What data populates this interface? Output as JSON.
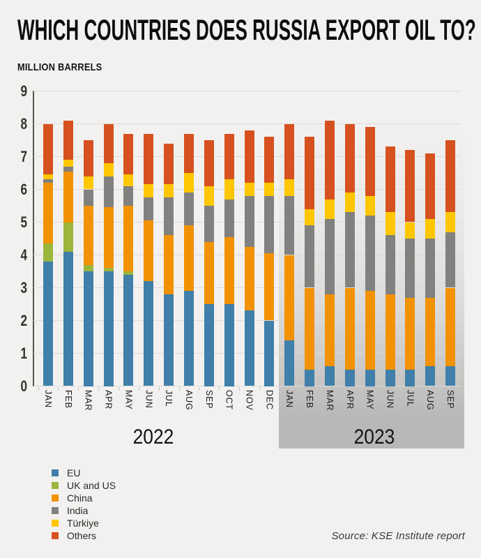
{
  "title": "WHICH COUNTRIES DOES RUSSIA EXPORT OIL TO?",
  "units_label": "MILLION BARRELS",
  "source": "Source: KSE Institute report",
  "colors": {
    "background": "#f2f1ef",
    "highlight_band": "#b9b8b6",
    "gridline": "#dcdbd9",
    "axis": "#56544f",
    "eu_blue": "#3f7fa9",
    "uk_us_green": "#9cb53c",
    "china_orange": "#f29203",
    "india_gray": "#818180",
    "turkiye_yellow": "#fec701",
    "others_red": "#d6511f"
  },
  "chart_data": {
    "type": "bar",
    "stacked": true,
    "title": "WHICH COUNTRIES DOES RUSSIA EXPORT OIL TO?",
    "ylabel": "MILLION BARRELS",
    "xlabel": "",
    "ylim": [
      0,
      9
    ],
    "yticks": [
      0,
      1,
      2,
      3,
      4,
      5,
      6,
      7,
      8,
      9
    ],
    "grid": true,
    "legend_position": "bottom-left",
    "categories": [
      "JAN",
      "FEB",
      "MAR",
      "APR",
      "MAY",
      "JUN",
      "JUL",
      "AUG",
      "SEP",
      "OCT",
      "NOV",
      "DEC",
      "JAN",
      "FEB",
      "MAR",
      "APR",
      "MAY",
      "JUN",
      "JUL",
      "AUG",
      "SEP"
    ],
    "category_groups": [
      {
        "label": "2022",
        "count": 12
      },
      {
        "label": "2023",
        "count": 9
      }
    ],
    "series": [
      {
        "name": "EU",
        "color": "#3f7fa9",
        "values": [
          3.8,
          4.1,
          3.5,
          3.5,
          3.4,
          3.2,
          2.8,
          2.9,
          2.5,
          2.5,
          2.3,
          2.0,
          1.4,
          0.5,
          0.6,
          0.5,
          0.5,
          0.5,
          0.5,
          0.6,
          0.6
        ]
      },
      {
        "name": "UK and US",
        "color": "#9cb53c",
        "values": [
          0.55,
          0.9,
          0.2,
          0.1,
          0.1,
          0,
          0,
          0,
          0,
          0,
          0,
          0,
          0,
          0,
          0,
          0,
          0,
          0,
          0,
          0,
          0
        ]
      },
      {
        "name": "China",
        "color": "#f29203",
        "values": [
          1.85,
          1.55,
          1.8,
          1.85,
          2.0,
          1.85,
          1.8,
          2.0,
          1.9,
          2.05,
          1.95,
          2.05,
          2.6,
          2.5,
          2.2,
          2.5,
          2.4,
          2.3,
          2.2,
          2.1,
          2.4
        ]
      },
      {
        "name": "India",
        "color": "#818180",
        "values": [
          0.1,
          0.15,
          0.5,
          0.95,
          0.6,
          0.7,
          1.15,
          1.0,
          1.1,
          1.15,
          1.55,
          1.75,
          1.8,
          1.9,
          2.3,
          2.3,
          2.3,
          1.8,
          1.8,
          1.8,
          1.7
        ]
      },
      {
        "name": "Türkiye",
        "color": "#fec701",
        "values": [
          0.15,
          0.2,
          0.4,
          0.4,
          0.35,
          0.4,
          0.4,
          0.6,
          0.6,
          0.6,
          0.4,
          0.4,
          0.5,
          0.5,
          0.6,
          0.6,
          0.6,
          0.7,
          0.5,
          0.6,
          0.6
        ]
      },
      {
        "name": "Others",
        "color": "#d6511f",
        "values": [
          1.55,
          1.2,
          1.1,
          1.2,
          1.25,
          1.55,
          1.25,
          1.2,
          1.4,
          1.4,
          1.6,
          1.4,
          1.7,
          2.2,
          2.4,
          2.1,
          2.1,
          2.0,
          2.2,
          2.0,
          2.2
        ]
      }
    ],
    "totals": [
      8.0,
      8.1,
      7.5,
      8.0,
      7.7,
      7.7,
      7.4,
      7.7,
      7.5,
      7.7,
      7.8,
      7.6,
      8.0,
      7.6,
      8.1,
      8.0,
      7.9,
      7.3,
      7.2,
      7.1,
      7.5
    ]
  },
  "legend": {
    "items": [
      {
        "label": "EU",
        "color": "#3f7fa9"
      },
      {
        "label": "UK and US",
        "color": "#9cb53c"
      },
      {
        "label": "China",
        "color": "#f29203"
      },
      {
        "label": "India",
        "color": "#818180"
      },
      {
        "label": "Türkiye",
        "color": "#fec701"
      },
      {
        "label": "Others",
        "color": "#d6511f"
      }
    ]
  }
}
